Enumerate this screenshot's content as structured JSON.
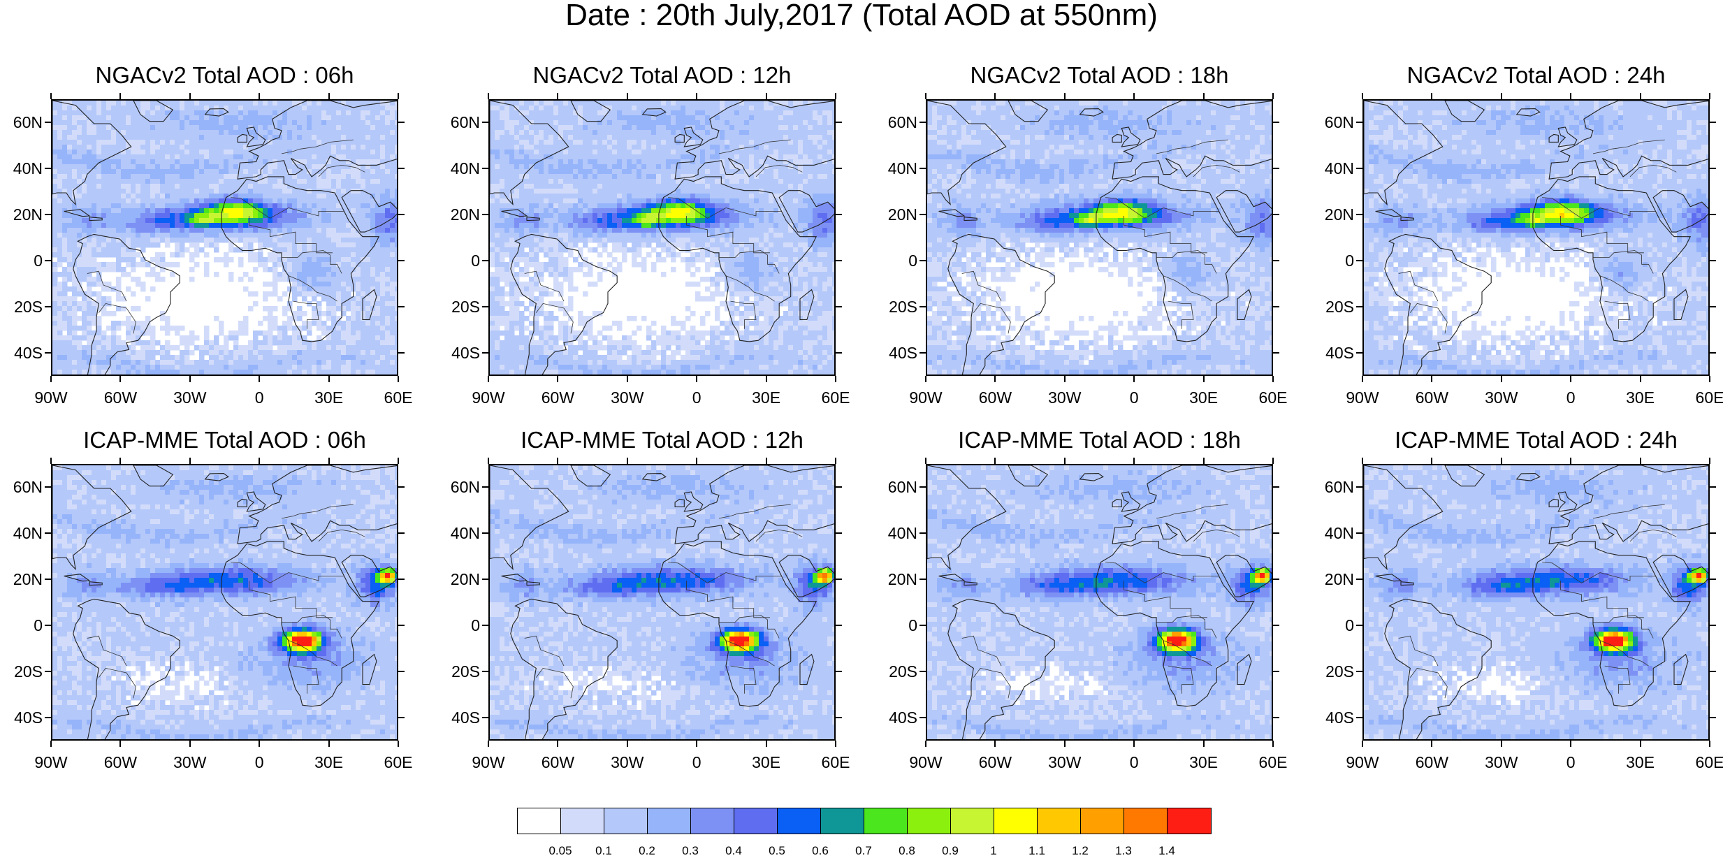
{
  "main_title": "Date : 20th July,2017 (Total AOD at 550nm)",
  "panels": [
    {
      "title": "NGACv2 Total AOD : 06h",
      "model": "ngac"
    },
    {
      "title": "NGACv2 Total AOD : 12h",
      "model": "ngac"
    },
    {
      "title": "NGACv2 Total AOD : 18h",
      "model": "ngac"
    },
    {
      "title": "NGACv2 Total AOD : 24h",
      "model": "ngac"
    },
    {
      "title": "ICAP-MME Total AOD : 06h",
      "model": "icap"
    },
    {
      "title": "ICAP-MME Total AOD : 12h",
      "model": "icap"
    },
    {
      "title": "ICAP-MME Total AOD : 18h",
      "model": "icap"
    },
    {
      "title": "ICAP-MME Total AOD : 24h",
      "model": "icap"
    }
  ],
  "lat_labels": [
    "60N",
    "40N",
    "20N",
    "0",
    "20S",
    "40S"
  ],
  "lat_values": [
    60,
    40,
    20,
    0,
    -20,
    -40
  ],
  "lon_labels": [
    "90W",
    "60W",
    "30W",
    "0",
    "30E",
    "60E"
  ],
  "lon_values": [
    -90,
    -60,
    -30,
    0,
    30,
    60
  ],
  "map_extent": {
    "lon": [
      -90,
      60
    ],
    "lat": [
      -50,
      70
    ]
  },
  "colorbar": {
    "labels": [
      "0.05",
      "0.1",
      "0.2",
      "0.3",
      "0.4",
      "0.5",
      "0.6",
      "0.7",
      "0.8",
      "0.9",
      "1",
      "1.1",
      "1.2",
      "1.3",
      "1.4"
    ],
    "colors": [
      "#ffffff",
      "#d2dcfa",
      "#b4c8fa",
      "#96b4fa",
      "#7d91f5",
      "#5f6ef0",
      "#0a5ff5",
      "#0f9696",
      "#4be61e",
      "#8cf00f",
      "#c8f532",
      "#ffff00",
      "#ffc800",
      "#ffa000",
      "#ff7800",
      "#ff1e14"
    ]
  }
}
